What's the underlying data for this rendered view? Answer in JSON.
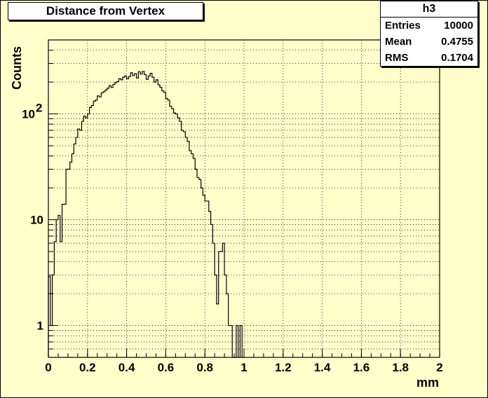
{
  "chart_data": {
    "type": "histogram",
    "title": "Distance from Vertex",
    "xlabel": "mm",
    "ylabel": "Counts",
    "xlim": [
      0,
      2
    ],
    "ylim": [
      0.5,
      500
    ],
    "y_scale": "log",
    "grid": true,
    "x_ticks": [
      "0",
      "0.2",
      "0.4",
      "0.6",
      "0.8",
      "1",
      "1.2",
      "1.4",
      "1.6",
      "1.8",
      "2"
    ],
    "y_ticks": [
      {
        "value": 1,
        "label": "1"
      },
      {
        "value": 10,
        "label": "10"
      },
      {
        "value": 100,
        "label": "10",
        "exponent": "2"
      }
    ],
    "bin_width": 0.01,
    "bins": [
      [
        0.01,
        2.9
      ],
      [
        0.02,
        1
      ],
      [
        0.03,
        3
      ],
      [
        0.04,
        6.2
      ],
      [
        0.05,
        10
      ],
      [
        0.06,
        11
      ],
      [
        0.07,
        6.2
      ],
      [
        0.08,
        14
      ],
      [
        0.09,
        14
      ],
      [
        0.1,
        30
      ],
      [
        0.11,
        30
      ],
      [
        0.12,
        35
      ],
      [
        0.13,
        42
      ],
      [
        0.14,
        52
      ],
      [
        0.15,
        60
      ],
      [
        0.16,
        72
      ],
      [
        0.17,
        70
      ],
      [
        0.18,
        85
      ],
      [
        0.19,
        95
      ],
      [
        0.2,
        92
      ],
      [
        0.21,
        100
      ],
      [
        0.22,
        115
      ],
      [
        0.23,
        120
      ],
      [
        0.24,
        132
      ],
      [
        0.25,
        135
      ],
      [
        0.26,
        148
      ],
      [
        0.27,
        145
      ],
      [
        0.28,
        158
      ],
      [
        0.29,
        162
      ],
      [
        0.3,
        168
      ],
      [
        0.31,
        175
      ],
      [
        0.32,
        185
      ],
      [
        0.33,
        178
      ],
      [
        0.34,
        190
      ],
      [
        0.35,
        198
      ],
      [
        0.36,
        202
      ],
      [
        0.37,
        215
      ],
      [
        0.38,
        210
      ],
      [
        0.39,
        222
      ],
      [
        0.4,
        228
      ],
      [
        0.41,
        215
      ],
      [
        0.42,
        225
      ],
      [
        0.43,
        245
      ],
      [
        0.44,
        230
      ],
      [
        0.45,
        240
      ],
      [
        0.46,
        218
      ],
      [
        0.47,
        250
      ],
      [
        0.48,
        238
      ],
      [
        0.49,
        252
      ],
      [
        0.5,
        235
      ],
      [
        0.51,
        212
      ],
      [
        0.52,
        228
      ],
      [
        0.53,
        242
      ],
      [
        0.54,
        222
      ],
      [
        0.55,
        200
      ],
      [
        0.56,
        210
      ],
      [
        0.57,
        188
      ],
      [
        0.58,
        178
      ],
      [
        0.59,
        165
      ],
      [
        0.6,
        160
      ],
      [
        0.61,
        140
      ],
      [
        0.62,
        135
      ],
      [
        0.63,
        118
      ],
      [
        0.64,
        112
      ],
      [
        0.65,
        102
      ],
      [
        0.66,
        100
      ],
      [
        0.67,
        92
      ],
      [
        0.68,
        85
      ],
      [
        0.69,
        70
      ],
      [
        0.7,
        68
      ],
      [
        0.71,
        60
      ],
      [
        0.72,
        55
      ],
      [
        0.73,
        45
      ],
      [
        0.74,
        42
      ],
      [
        0.75,
        38
      ],
      [
        0.76,
        30
      ],
      [
        0.77,
        25
      ],
      [
        0.78,
        24
      ],
      [
        0.79,
        20
      ],
      [
        0.8,
        17
      ],
      [
        0.81,
        15
      ],
      [
        0.82,
        15
      ],
      [
        0.83,
        12
      ],
      [
        0.84,
        9
      ],
      [
        0.85,
        6
      ],
      [
        0.86,
        3
      ],
      [
        0.87,
        1.6
      ],
      [
        0.88,
        5
      ],
      [
        0.89,
        5
      ],
      [
        0.9,
        6
      ],
      [
        0.91,
        3
      ],
      [
        0.92,
        2
      ],
      [
        0.93,
        1
      ],
      [
        0.94,
        1
      ],
      [
        0.95,
        0
      ],
      [
        0.96,
        0
      ],
      [
        0.97,
        1
      ],
      [
        0.98,
        0
      ],
      [
        0.99,
        1
      ],
      [
        1.0,
        0
      ]
    ]
  },
  "stats": {
    "name": "h3",
    "rows": [
      {
        "label": "Entries",
        "value": "10000"
      },
      {
        "label": "Mean",
        "value": "0.4755"
      },
      {
        "label": "RMS",
        "value": "0.1704"
      }
    ]
  }
}
